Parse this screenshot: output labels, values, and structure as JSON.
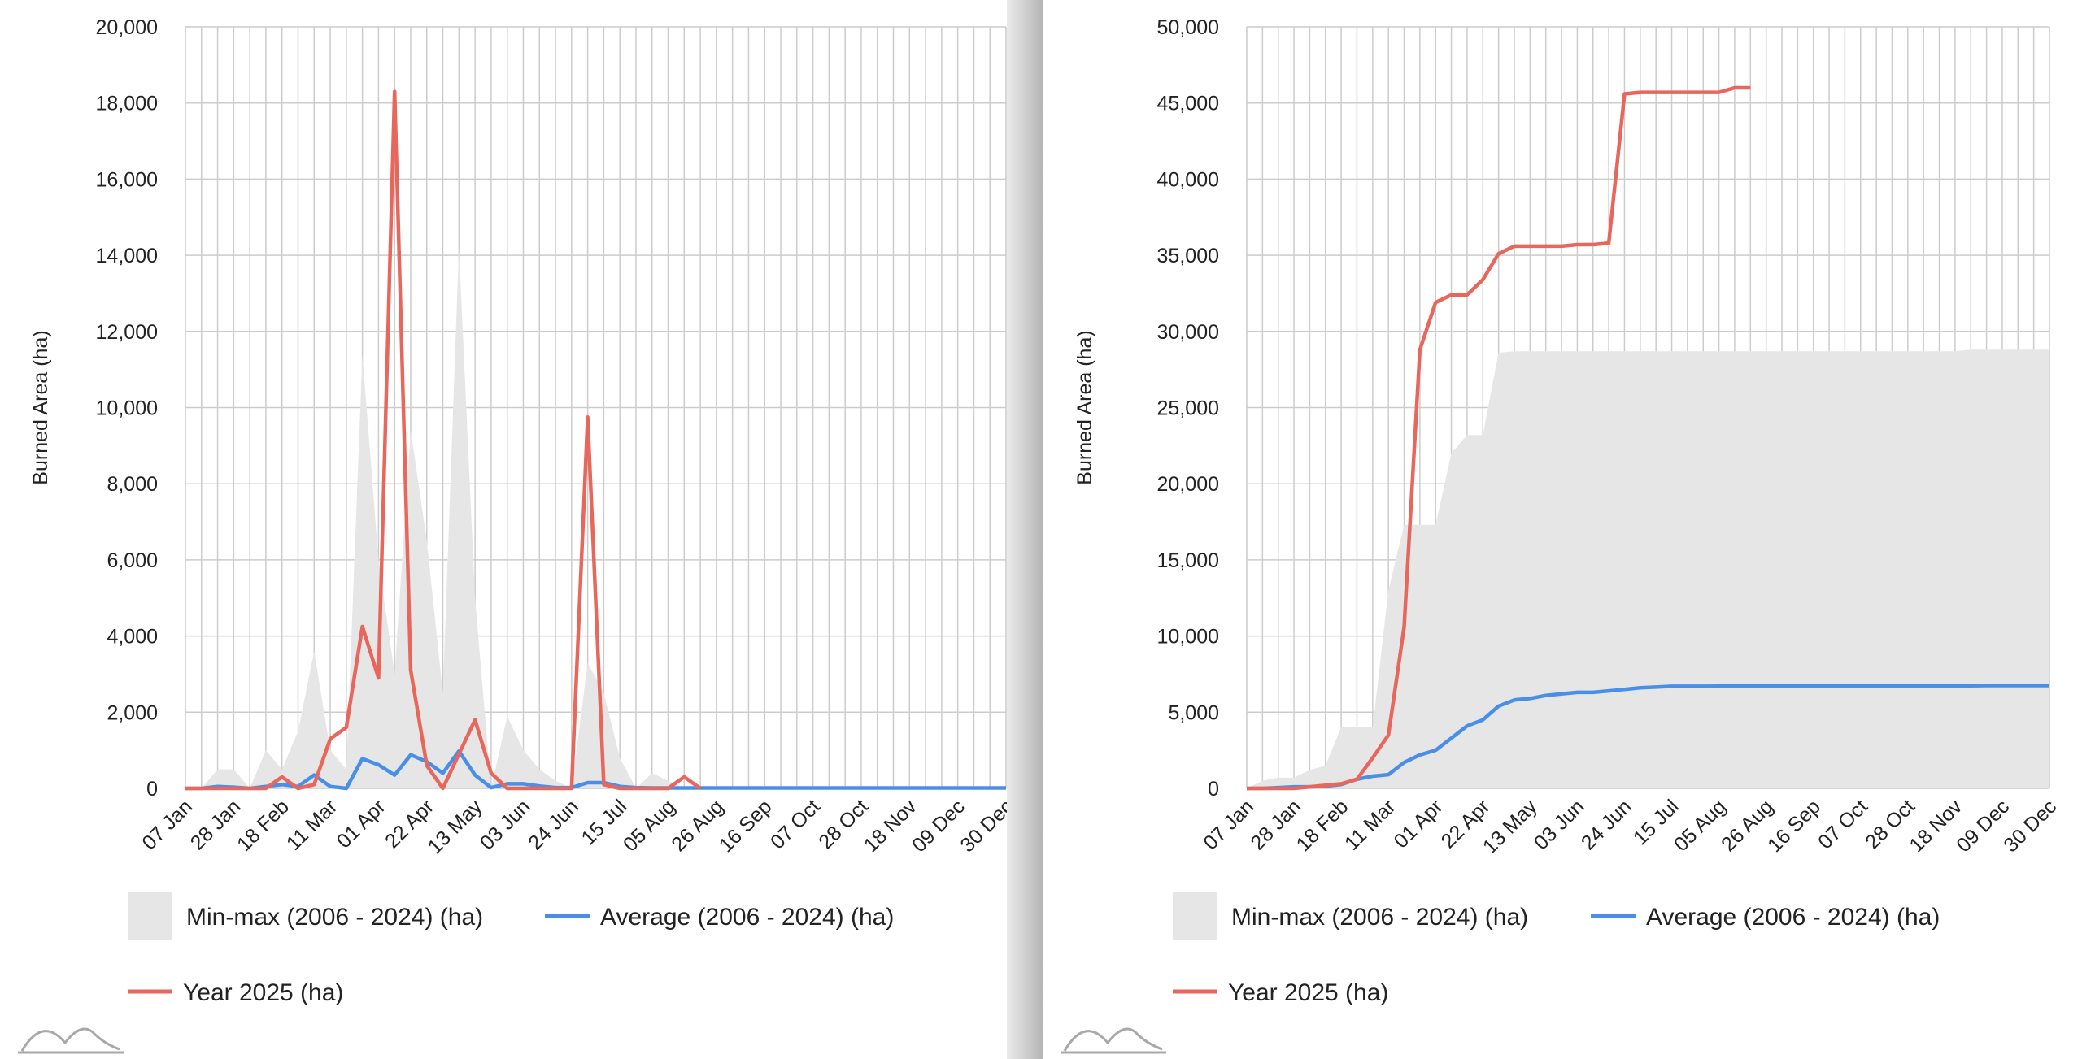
{
  "chart_data": [
    {
      "type": "area",
      "ylabel": "Burned Area (ha)",
      "ylim": [
        0,
        20000
      ],
      "ytick_step": 2000,
      "grid": true,
      "legend_position": "bottom",
      "x_tick_labels": [
        "07 Jan",
        "28 Jan",
        "18 Feb",
        "11 Mar",
        "01 Apr",
        "22 Apr",
        "13 May",
        "03 Jun",
        "24 Jun",
        "15 Jul",
        "05 Aug",
        "26 Aug",
        "16 Sep",
        "07 Oct",
        "28 Oct",
        "18 Nov",
        "09 Dec",
        "30 Dec"
      ],
      "x_week_count": 52,
      "series": [
        {
          "name": "Min-max (2006 - 2024) (ha)",
          "kind": "band",
          "color": "#e6e6e6",
          "min": [
            0,
            0,
            0,
            0,
            0,
            0,
            0,
            0,
            0,
            0,
            0,
            0,
            0,
            0,
            0,
            0,
            0,
            0,
            0,
            0,
            0,
            0,
            0,
            0,
            0,
            0,
            0,
            0,
            0,
            0,
            0,
            0,
            0,
            0,
            0,
            0,
            0,
            0,
            0,
            0,
            0,
            0,
            0,
            0,
            0,
            0,
            0,
            0,
            0,
            0,
            0,
            0
          ],
          "max": [
            0,
            0,
            500,
            500,
            0,
            1000,
            500,
            1500,
            3600,
            1000,
            500,
            11400,
            6000,
            3000,
            9400,
            6500,
            2500,
            14200,
            5000,
            0,
            1900,
            1000,
            500,
            200,
            0,
            3300,
            2500,
            800,
            0,
            400,
            200,
            0,
            0,
            0,
            0,
            0,
            0,
            0,
            0,
            0,
            0,
            0,
            0,
            0,
            0,
            0,
            0,
            0,
            0,
            0,
            0,
            0
          ]
        },
        {
          "name": "Average (2006 - 2024) (ha)",
          "kind": "line",
          "color": "#4a8fe7",
          "values": [
            0,
            0,
            50,
            30,
            0,
            50,
            100,
            50,
            350,
            50,
            0,
            780,
            620,
            350,
            880,
            700,
            400,
            980,
            350,
            20,
            120,
            120,
            60,
            20,
            20,
            150,
            150,
            50,
            20,
            10,
            10,
            10,
            10,
            10,
            10,
            10,
            10,
            10,
            10,
            10,
            10,
            10,
            10,
            10,
            10,
            10,
            10,
            10,
            10,
            10,
            10,
            10
          ]
        },
        {
          "name": "Year 2025 (ha)",
          "kind": "line",
          "color": "#e8675c",
          "values": [
            0,
            0,
            0,
            0,
            0,
            0,
            300,
            0,
            100,
            1300,
            1600,
            4250,
            2900,
            18300,
            3100,
            600,
            0,
            900,
            1800,
            400,
            0,
            0,
            0,
            0,
            0,
            9750,
            100,
            0,
            0,
            0,
            0,
            300,
            0
          ]
        }
      ]
    },
    {
      "type": "area",
      "ylabel": "Burned Area (ha)",
      "ylim": [
        0,
        50000
      ],
      "ytick_step": 5000,
      "grid": true,
      "legend_position": "bottom",
      "x_tick_labels": [
        "07 Jan",
        "28 Jan",
        "18 Feb",
        "11 Mar",
        "01 Apr",
        "22 Apr",
        "13 May",
        "03 Jun",
        "24 Jun",
        "15 Jul",
        "05 Aug",
        "26 Aug",
        "16 Sep",
        "07 Oct",
        "28 Oct",
        "18 Nov",
        "09 Dec",
        "30 Dec"
      ],
      "x_week_count": 52,
      "series": [
        {
          "name": "Min-max (2006 - 2024) (ha)",
          "kind": "band",
          "color": "#e6e6e6",
          "min": [
            0,
            0,
            0,
            0,
            0,
            0,
            0,
            0,
            0,
            0,
            0,
            0,
            0,
            0,
            0,
            0,
            0,
            0,
            0,
            0,
            0,
            0,
            0,
            0,
            0,
            0,
            0,
            0,
            0,
            0,
            0,
            0,
            0,
            0,
            0,
            0,
            0,
            0,
            0,
            0,
            0,
            0,
            0,
            0,
            0,
            0,
            0,
            0,
            0,
            0,
            0,
            0
          ],
          "max": [
            0,
            500,
            700,
            700,
            1200,
            1500,
            4000,
            4000,
            4000,
            13000,
            17300,
            17300,
            17300,
            22000,
            23200,
            23200,
            28600,
            28700,
            28700,
            28700,
            28700,
            28700,
            28700,
            28700,
            28700,
            28700,
            28700,
            28700,
            28700,
            28700,
            28700,
            28700,
            28700,
            28700,
            28700,
            28700,
            28700,
            28700,
            28700,
            28700,
            28700,
            28700,
            28700,
            28700,
            28700,
            28700,
            28800,
            28800,
            28800,
            28800,
            28800,
            28800
          ]
        },
        {
          "name": "Average (2006 - 2024) (ha)",
          "kind": "line",
          "color": "#4a8fe7",
          "values": [
            0,
            0,
            50,
            100,
            100,
            150,
            250,
            600,
            800,
            900,
            1700,
            2200,
            2500,
            3300,
            4100,
            4500,
            5400,
            5800,
            5900,
            6100,
            6200,
            6300,
            6300,
            6400,
            6500,
            6600,
            6650,
            6700,
            6700,
            6700,
            6710,
            6720,
            6720,
            6720,
            6720,
            6730,
            6730,
            6730,
            6730,
            6740,
            6740,
            6740,
            6740,
            6740,
            6740,
            6740,
            6740,
            6750,
            6750,
            6750,
            6750,
            6750
          ]
        },
        {
          "name": "Year 2025 (ha)",
          "kind": "line",
          "color": "#e8675c",
          "values": [
            0,
            0,
            0,
            0,
            100,
            200,
            300,
            600,
            2000,
            3500,
            10600,
            28800,
            31900,
            32400,
            32400,
            33400,
            35100,
            35600,
            35600,
            35600,
            35600,
            35700,
            35700,
            35800,
            45600,
            45700,
            45700,
            45700,
            45700,
            45700,
            45700,
            46000,
            46000
          ]
        }
      ]
    }
  ]
}
